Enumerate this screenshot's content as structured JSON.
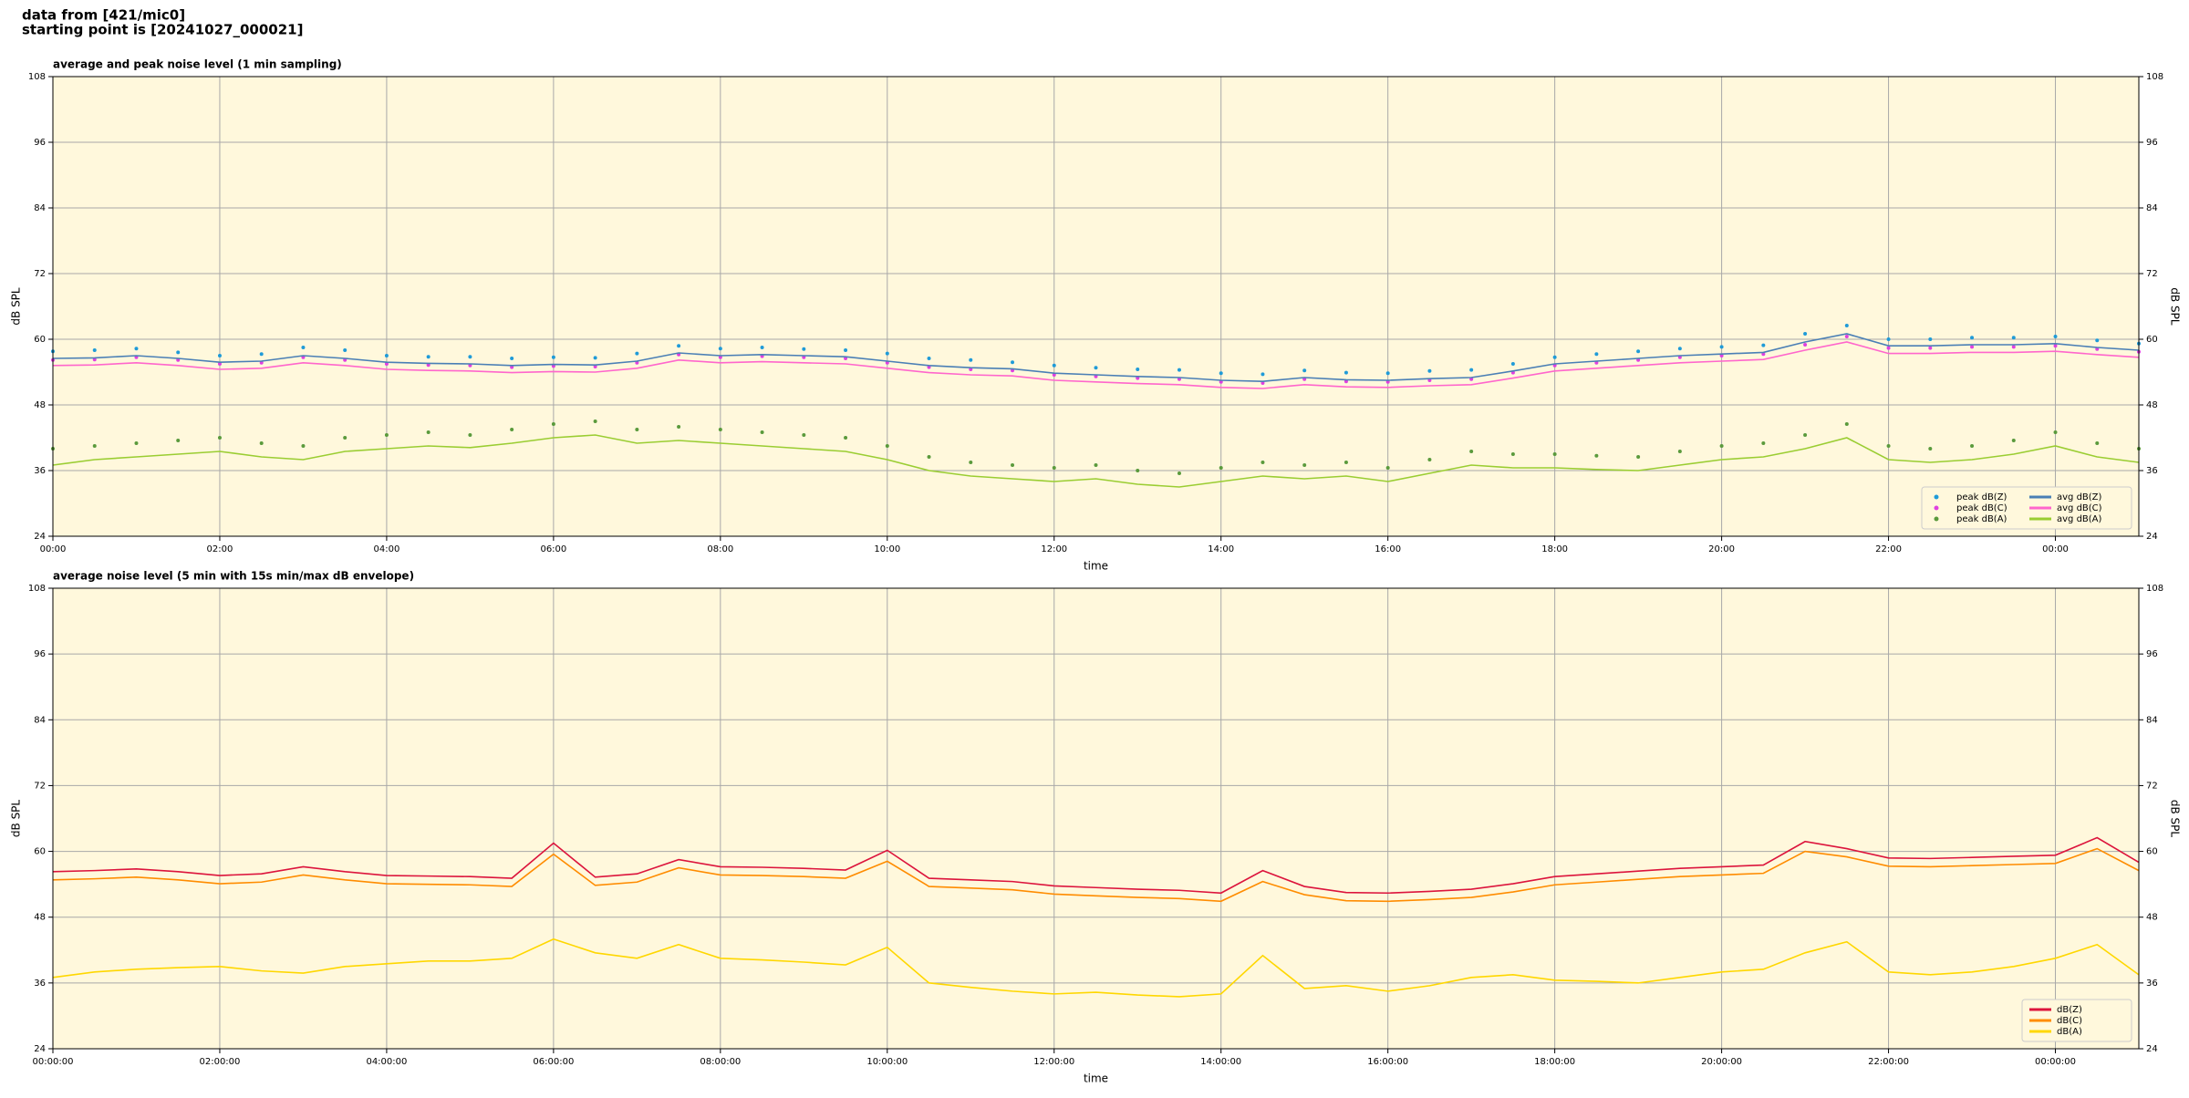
{
  "header": {
    "line1": "data from [421/mic0]",
    "line2": "starting point is [20241027_000021]"
  },
  "chart_data": [
    {
      "type": "line",
      "title": "average and peak noise level (1 min sampling)",
      "xlabel": "time",
      "ylabel": "dB SPL",
      "xlim": [
        0,
        25
      ],
      "ylim": [
        24,
        108
      ],
      "xticks": [
        {
          "value": 0,
          "label": "00:00"
        },
        {
          "value": 2,
          "label": "02:00"
        },
        {
          "value": 4,
          "label": "04:00"
        },
        {
          "value": 6,
          "label": "06:00"
        },
        {
          "value": 8,
          "label": "08:00"
        },
        {
          "value": 10,
          "label": "10:00"
        },
        {
          "value": 12,
          "label": "12:00"
        },
        {
          "value": 14,
          "label": "14:00"
        },
        {
          "value": 16,
          "label": "16:00"
        },
        {
          "value": 18,
          "label": "18:00"
        },
        {
          "value": 20,
          "label": "20:00"
        },
        {
          "value": 22,
          "label": "22:00"
        },
        {
          "value": 24,
          "label": "00:00"
        }
      ],
      "yticks": [
        24,
        36,
        48,
        60,
        72,
        84,
        96,
        108
      ],
      "grid": true,
      "legend": "lower right",
      "legend_columns": 2,
      "x": [
        0,
        0.5,
        1,
        1.5,
        2,
        2.5,
        3,
        3.5,
        4,
        4.5,
        5,
        5.5,
        6,
        6.5,
        7,
        7.5,
        8,
        8.5,
        9,
        9.5,
        10,
        10.5,
        11,
        11.5,
        12,
        12.5,
        13,
        13.5,
        14,
        14.5,
        15,
        15.5,
        16,
        16.5,
        17,
        17.5,
        18,
        18.5,
        19,
        19.5,
        20,
        20.5,
        21,
        21.5,
        22,
        22.5,
        23,
        23.5,
        24,
        24.5,
        25
      ],
      "series": [
        {
          "name": "peak dB(Z)",
          "type": "scatter",
          "color": "#1f9bd8",
          "values": [
            57.8,
            58,
            58.3,
            57.6,
            57,
            57.3,
            58.5,
            58,
            57,
            56.8,
            56.8,
            56.5,
            56.7,
            56.6,
            57.4,
            58.8,
            58.3,
            58.5,
            58.2,
            58,
            57.4,
            56.5,
            56.2,
            55.8,
            55.2,
            54.8,
            54.5,
            54.4,
            53.8,
            53.6,
            54.3,
            53.9,
            53.8,
            54.2,
            54.4,
            55.5,
            56.7,
            57.3,
            57.8,
            58.3,
            58.6,
            58.9,
            61,
            62.5,
            60,
            60,
            60.3,
            60.3,
            60.5,
            59.8,
            59.2
          ]
        },
        {
          "name": "peak dB(C)",
          "type": "scatter",
          "color": "#e040e0",
          "values": [
            56.2,
            56.3,
            56.7,
            56.2,
            55.5,
            55.7,
            56.7,
            56.2,
            55.5,
            55.3,
            55.2,
            54.9,
            55.1,
            55,
            55.7,
            57.2,
            56.7,
            56.9,
            56.7,
            56.5,
            55.7,
            54.9,
            54.5,
            54.3,
            53.5,
            53.2,
            52.9,
            52.7,
            52.2,
            52,
            52.7,
            52.3,
            52.2,
            52.5,
            52.7,
            53.9,
            55.2,
            55.7,
            56.2,
            56.7,
            57,
            57.3,
            59,
            60.5,
            58.4,
            58.4,
            58.6,
            58.6,
            58.8,
            58.2,
            57.7
          ]
        },
        {
          "name": "peak dB(A)",
          "type": "scatter",
          "color": "#5a9a3c",
          "values": [
            40,
            40.5,
            41,
            41.5,
            42,
            41,
            40.5,
            42,
            42.5,
            43,
            42.5,
            43.5,
            44.5,
            45,
            43.5,
            44,
            43.5,
            43,
            42.5,
            42,
            40.5,
            38.5,
            37.5,
            37,
            36.5,
            37,
            36,
            35.5,
            36.5,
            37.5,
            37,
            37.5,
            36.5,
            38,
            39.5,
            39,
            39,
            38.7,
            38.5,
            39.5,
            40.5,
            41,
            42.5,
            44.5,
            40.5,
            40,
            40.5,
            41.5,
            43,
            41,
            40
          ]
        },
        {
          "name": "avg dB(Z)",
          "type": "line",
          "color": "#4a7fb5",
          "values": [
            56.5,
            56.6,
            57,
            56.5,
            55.8,
            56,
            57,
            56.5,
            55.8,
            55.6,
            55.5,
            55.2,
            55.4,
            55.3,
            56,
            57.5,
            57,
            57.2,
            57,
            56.8,
            56,
            55.2,
            54.8,
            54.6,
            53.8,
            53.5,
            53.2,
            53,
            52.5,
            52.3,
            53,
            52.6,
            52.5,
            52.8,
            53,
            54.2,
            55.5,
            56,
            56.5,
            57,
            57.3,
            57.6,
            59.5,
            61,
            58.8,
            58.8,
            59,
            59,
            59.2,
            58.5,
            58
          ]
        },
        {
          "name": "avg dB(C)",
          "type": "line",
          "color": "#ff66cc",
          "values": [
            55.2,
            55.3,
            55.7,
            55.2,
            54.5,
            54.7,
            55.7,
            55.2,
            54.5,
            54.3,
            54.2,
            53.9,
            54.1,
            54,
            54.7,
            56.2,
            55.7,
            55.9,
            55.7,
            55.5,
            54.7,
            53.9,
            53.5,
            53.3,
            52.5,
            52.2,
            51.9,
            51.7,
            51.2,
            51,
            51.7,
            51.3,
            51.2,
            51.5,
            51.7,
            52.9,
            54.2,
            54.7,
            55.2,
            55.7,
            56,
            56.3,
            58,
            59.5,
            57.4,
            57.4,
            57.6,
            57.6,
            57.8,
            57.2,
            56.7
          ]
        },
        {
          "name": "avg dB(A)",
          "type": "line",
          "color": "#9acd32",
          "values": [
            37,
            38,
            38.5,
            39,
            39.5,
            38.5,
            38,
            39.5,
            40,
            40.5,
            40.2,
            41,
            42,
            42.5,
            41,
            41.5,
            41,
            40.5,
            40,
            39.5,
            38,
            36,
            35,
            34.5,
            34,
            34.5,
            33.5,
            33,
            34,
            35,
            34.5,
            35,
            34,
            35.5,
            37,
            36.5,
            36.5,
            36.2,
            36,
            37,
            38,
            38.5,
            40,
            42,
            38,
            37.5,
            38,
            39,
            40.5,
            38.5,
            37.5
          ]
        }
      ]
    },
    {
      "type": "line",
      "title": "average noise level (5 min with 15s min/max dB envelope)",
      "xlabel": "time",
      "ylabel": "dB SPL",
      "xlim": [
        0,
        25
      ],
      "ylim": [
        24,
        108
      ],
      "xticks": [
        {
          "value": 0,
          "label": "00:00:00"
        },
        {
          "value": 2,
          "label": "02:00:00"
        },
        {
          "value": 4,
          "label": "04:00:00"
        },
        {
          "value": 6,
          "label": "06:00:00"
        },
        {
          "value": 8,
          "label": "08:00:00"
        },
        {
          "value": 10,
          "label": "10:00:00"
        },
        {
          "value": 12,
          "label": "12:00:00"
        },
        {
          "value": 14,
          "label": "14:00:00"
        },
        {
          "value": 16,
          "label": "16:00:00"
        },
        {
          "value": 18,
          "label": "18:00:00"
        },
        {
          "value": 20,
          "label": "20:00:00"
        },
        {
          "value": 22,
          "label": "22:00:00"
        },
        {
          "value": 24,
          "label": "00:00:00"
        }
      ],
      "yticks": [
        24,
        36,
        48,
        60,
        72,
        84,
        96,
        108
      ],
      "grid": true,
      "legend": "lower right",
      "legend_columns": 1,
      "x": [
        0,
        0.5,
        1,
        1.5,
        2,
        2.5,
        3,
        3.5,
        4,
        4.5,
        5,
        5.5,
        6,
        6.5,
        7,
        7.5,
        8,
        8.5,
        9,
        9.5,
        10,
        10.5,
        11,
        11.5,
        12,
        12.5,
        13,
        13.5,
        14,
        14.5,
        15,
        15.5,
        16,
        16.5,
        17,
        17.5,
        18,
        18.5,
        19,
        19.5,
        20,
        20.5,
        21,
        21.5,
        22,
        22.5,
        23,
        23.5,
        24,
        24.5,
        25
      ],
      "series": [
        {
          "name": "dB(Z)",
          "type": "line",
          "color": "#dc143c",
          "values": [
            56.3,
            56.5,
            56.8,
            56.3,
            55.6,
            55.9,
            57.2,
            56.3,
            55.6,
            55.5,
            55.4,
            55.1,
            61.5,
            55.3,
            55.9,
            58.5,
            57.2,
            57.1,
            56.9,
            56.6,
            60.2,
            55.1,
            54.8,
            54.5,
            53.7,
            53.4,
            53.1,
            52.9,
            52.4,
            56.5,
            53.6,
            52.5,
            52.4,
            52.7,
            53.1,
            54.1,
            55.4,
            55.9,
            56.4,
            56.9,
            57.2,
            57.5,
            61.8,
            60.5,
            58.8,
            58.7,
            58.9,
            59.1,
            59.3,
            62.5,
            58
          ]
        },
        {
          "name": "dB(C)",
          "type": "line",
          "color": "#ff8c00",
          "values": [
            54.8,
            55,
            55.3,
            54.8,
            54.1,
            54.4,
            55.7,
            54.8,
            54.1,
            54,
            53.9,
            53.6,
            59.5,
            53.8,
            54.4,
            57,
            55.7,
            55.6,
            55.4,
            55.1,
            58.2,
            53.6,
            53.3,
            53,
            52.2,
            51.9,
            51.6,
            51.4,
            50.9,
            54.5,
            52.1,
            51,
            50.9,
            51.2,
            51.6,
            52.6,
            53.9,
            54.4,
            54.9,
            55.4,
            55.7,
            56,
            60,
            59,
            57.3,
            57.2,
            57.4,
            57.6,
            57.8,
            60.5,
            56.5
          ]
        },
        {
          "name": "dB(A)",
          "type": "line",
          "color": "#ffd700",
          "values": [
            37,
            38,
            38.5,
            38.8,
            39,
            38.2,
            37.8,
            39,
            39.5,
            40,
            40,
            40.5,
            44,
            41.5,
            40.5,
            43,
            40.5,
            40.2,
            39.8,
            39.3,
            42.5,
            36,
            35.2,
            34.5,
            34,
            34.3,
            33.8,
            33.5,
            34,
            41,
            35,
            35.5,
            34.5,
            35.5,
            37,
            37.5,
            36.5,
            36.3,
            36,
            37,
            38,
            38.5,
            41.5,
            43.5,
            38,
            37.5,
            38,
            39,
            40.5,
            43,
            37.5
          ]
        }
      ]
    }
  ]
}
